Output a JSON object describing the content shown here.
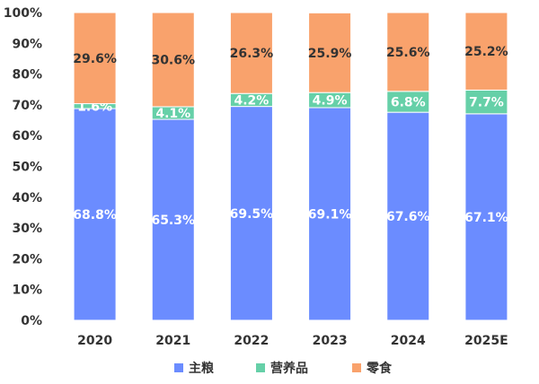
{
  "chart_data": {
    "type": "bar",
    "stacked": true,
    "categories": [
      "2020",
      "2021",
      "2022",
      "2023",
      "2024",
      "2025E"
    ],
    "series": [
      {
        "name": "主粮",
        "color": "#6b8cff",
        "label_color": "#ffffff",
        "values": [
          68.8,
          65.3,
          69.5,
          69.1,
          67.6,
          67.1
        ]
      },
      {
        "name": "营养品",
        "color": "#66d0a8",
        "label_color": "#ffffff",
        "values": [
          1.6,
          4.1,
          4.2,
          4.9,
          6.8,
          7.7
        ]
      },
      {
        "name": "零食",
        "color": "#f9a26c",
        "label_color": "#333333",
        "values": [
          29.6,
          30.6,
          26.3,
          25.9,
          25.6,
          25.2
        ]
      }
    ],
    "yticks": [
      "0%",
      "10%",
      "20%",
      "30%",
      "40%",
      "50%",
      "60%",
      "70%",
      "80%",
      "90%",
      "100%"
    ],
    "ylim": [
      0,
      100
    ],
    "grid": false,
    "legend": "bottom-center"
  }
}
